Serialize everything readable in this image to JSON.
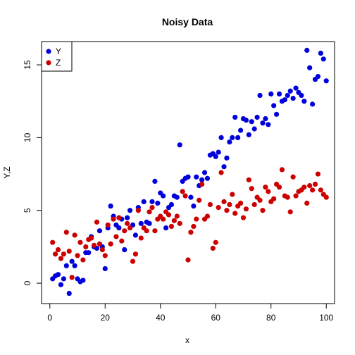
{
  "chart_data": {
    "type": "scatter",
    "title": "Noisy Data",
    "xlabel": "x",
    "ylabel": "Y,Z",
    "xlim": [
      -3,
      103
    ],
    "ylim": [
      -1.4,
      16.6
    ],
    "x_ticks": [
      0,
      20,
      40,
      60,
      80,
      100
    ],
    "y_ticks": [
      0,
      5,
      10,
      15
    ],
    "grid": false,
    "legend_position": "top-left",
    "x": [
      1,
      2,
      3,
      4,
      5,
      6,
      7,
      8,
      9,
      10,
      11,
      12,
      13,
      14,
      15,
      16,
      17,
      18,
      19,
      20,
      21,
      22,
      23,
      24,
      25,
      26,
      27,
      28,
      29,
      30,
      31,
      32,
      33,
      34,
      35,
      36,
      37,
      38,
      39,
      40,
      41,
      42,
      43,
      44,
      45,
      46,
      47,
      48,
      49,
      50,
      51,
      52,
      53,
      54,
      55,
      56,
      57,
      58,
      59,
      60,
      61,
      62,
      63,
      64,
      65,
      66,
      67,
      68,
      69,
      70,
      71,
      72,
      73,
      74,
      75,
      76,
      77,
      78,
      79,
      80,
      81,
      82,
      83,
      84,
      85,
      86,
      87,
      88,
      89,
      90,
      91,
      92,
      93,
      94,
      95,
      96,
      97,
      98,
      99,
      100
    ],
    "series": [
      {
        "name": "Y",
        "color": "#0000dd",
        "values": [
          0.3,
          0.5,
          0.6,
          -0.1,
          0.3,
          1.2,
          -0.7,
          1.5,
          1.2,
          0.3,
          0.1,
          0.2,
          2.1,
          2.1,
          3.2,
          2.5,
          2.4,
          3.6,
          2.5,
          1.0,
          3.8,
          5.3,
          4.6,
          4.0,
          3.8,
          4.4,
          2.3,
          4.5,
          5.0,
          4.0,
          3.3,
          5.2,
          4.1,
          5.6,
          4.2,
          4.1,
          5.6,
          7.0,
          5.5,
          6.2,
          6.0,
          3.8,
          5.2,
          5.4,
          6.0,
          5.9,
          9.5,
          7.0,
          7.2,
          7.3,
          5.9,
          5.3,
          7.3,
          6.7,
          7.1,
          7.6,
          7.2,
          8.8,
          8.9,
          8.7,
          9.0,
          10.0,
          8.0,
          8.6,
          9.7,
          10.0,
          11.4,
          10.0,
          10.5,
          11.3,
          11.2,
          10.2,
          11.1,
          10.6,
          11.4,
          12.9,
          11.0,
          11.3,
          10.9,
          13.0,
          12.2,
          11.6,
          13.0,
          12.5,
          12.6,
          12.9,
          13.2,
          12.7,
          13.4,
          13.1,
          12.9,
          12.5,
          16.0,
          14.8,
          12.3,
          14.0,
          14.2,
          15.8,
          15.4,
          13.9
        ]
      },
      {
        "name": "Z",
        "color": "#cc0000",
        "values": [
          2.8,
          2.0,
          2.3,
          1.7,
          2.0,
          3.5,
          2.2,
          0.4,
          3.3,
          1.9,
          2.8,
          1.6,
          2.5,
          3.0,
          3.1,
          2.6,
          4.2,
          2.7,
          2.3,
          1.9,
          4.0,
          2.7,
          4.4,
          3.2,
          4.5,
          2.9,
          3.6,
          4.1,
          3.8,
          1.5,
          2.0,
          5.0,
          3.1,
          3.8,
          3.6,
          4.9,
          5.2,
          3.6,
          4.4,
          4.6,
          4.4,
          4.9,
          4.7,
          3.9,
          4.3,
          4.6,
          4.1,
          6.3,
          6.0,
          1.6,
          3.5,
          3.9,
          4.4,
          5.7,
          6.8,
          4.4,
          4.6,
          5.4,
          2.4,
          2.8,
          5.2,
          7.6,
          5.6,
          5.0,
          5.4,
          6.1,
          4.8,
          5.3,
          5.5,
          4.5,
          5.1,
          7.1,
          6.5,
          5.4,
          5.9,
          5.7,
          5.0,
          6.6,
          6.3,
          5.6,
          5.8,
          6.8,
          6.6,
          7.8,
          6.0,
          5.9,
          4.9,
          7.3,
          6.0,
          6.3,
          6.4,
          6.6,
          5.5,
          6.7,
          6.4,
          6.8,
          7.5,
          6.4,
          6.1,
          5.9
        ]
      }
    ]
  }
}
